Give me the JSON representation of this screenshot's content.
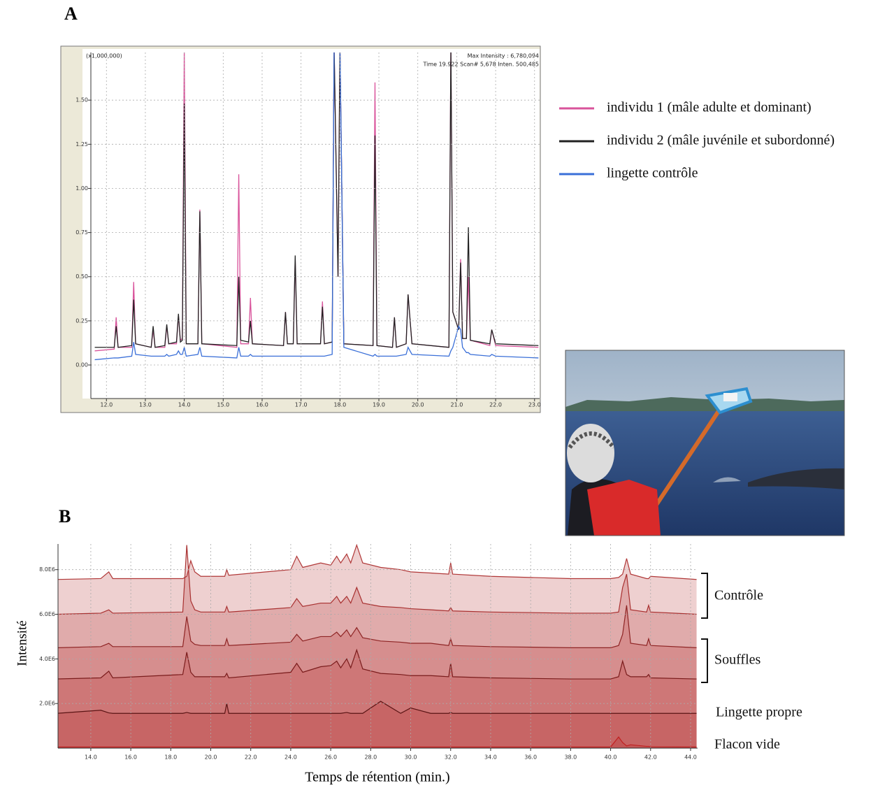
{
  "panel_labels": [
    "A",
    "B"
  ],
  "chart_data": [
    {
      "type": "line",
      "annotations": [
        "(x1,000,000)",
        "Max Intensity : 6,780,094",
        "Time 19.922 Scan# 5,678 Inten. 500,485"
      ],
      "x": [
        11.7,
        12.2,
        12.25,
        12.3,
        12.65,
        12.7,
        12.75,
        13.15,
        13.2,
        13.25,
        13.5,
        13.55,
        13.6,
        13.8,
        13.85,
        13.9,
        13.95,
        14.0,
        14.05,
        14.35,
        14.4,
        14.45,
        15.35,
        15.4,
        15.45,
        15.65,
        15.7,
        15.75,
        16.55,
        16.6,
        16.65,
        16.8,
        16.85,
        16.9,
        17.5,
        17.55,
        17.6,
        17.8,
        17.85,
        17.95,
        18.0,
        18.1,
        18.85,
        18.9,
        18.95,
        19.35,
        19.4,
        19.45,
        19.7,
        19.75,
        19.85,
        20.8,
        20.85,
        20.9,
        21.05,
        21.1,
        21.15,
        21.25,
        21.3,
        21.35,
        21.85,
        21.9,
        22.0,
        23.1
      ],
      "series": [
        {
          "name": "individu 1 (mâle adulte et dominant)",
          "color": "#d9539b",
          "values": [
            0.08,
            0.09,
            0.27,
            0.1,
            0.1,
            0.47,
            0.12,
            0.1,
            0.2,
            0.1,
            0.1,
            0.22,
            0.12,
            0.12,
            0.28,
            0.14,
            0.15,
            1.8,
            0.12,
            0.12,
            0.88,
            0.12,
            0.1,
            1.08,
            0.12,
            0.12,
            0.38,
            0.12,
            0.11,
            0.3,
            0.12,
            0.12,
            0.6,
            0.12,
            0.12,
            0.36,
            0.12,
            0.13,
            1.8,
            0.5,
            1.8,
            0.12,
            0.11,
            1.6,
            0.11,
            0.1,
            0.27,
            0.1,
            0.12,
            0.4,
            0.12,
            0.1,
            1.8,
            0.3,
            0.2,
            0.6,
            0.15,
            0.15,
            0.5,
            0.14,
            0.11,
            0.2,
            0.11,
            0.1
          ]
        },
        {
          "name": "individu 2 (mâle juvénile et subordonné)",
          "color": "#222222",
          "values": [
            0.1,
            0.1,
            0.22,
            0.1,
            0.11,
            0.37,
            0.12,
            0.1,
            0.22,
            0.1,
            0.11,
            0.23,
            0.12,
            0.13,
            0.29,
            0.13,
            0.14,
            1.48,
            0.12,
            0.12,
            0.87,
            0.12,
            0.11,
            0.5,
            0.14,
            0.13,
            0.25,
            0.12,
            0.11,
            0.3,
            0.12,
            0.12,
            0.62,
            0.12,
            0.12,
            0.33,
            0.12,
            0.13,
            1.8,
            0.5,
            1.8,
            0.12,
            0.11,
            1.3,
            0.11,
            0.1,
            0.27,
            0.1,
            0.12,
            0.4,
            0.12,
            0.1,
            1.8,
            0.3,
            0.2,
            0.58,
            0.15,
            0.15,
            0.78,
            0.14,
            0.12,
            0.2,
            0.12,
            0.11
          ]
        },
        {
          "name": "lingette contrôle",
          "color": "#3a6fd8",
          "values": [
            0.03,
            0.04,
            0.04,
            0.04,
            0.05,
            0.13,
            0.06,
            0.05,
            0.05,
            0.05,
            0.05,
            0.06,
            0.05,
            0.06,
            0.08,
            0.06,
            0.06,
            0.1,
            0.05,
            0.06,
            0.1,
            0.05,
            0.04,
            0.1,
            0.05,
            0.05,
            0.06,
            0.05,
            0.05,
            0.05,
            0.05,
            0.05,
            0.05,
            0.05,
            0.05,
            0.05,
            0.05,
            0.06,
            1.8,
            1.8,
            1.8,
            0.1,
            0.05,
            0.06,
            0.05,
            0.05,
            0.05,
            0.05,
            0.06,
            0.1,
            0.06,
            0.05,
            0.08,
            0.1,
            0.22,
            0.2,
            0.1,
            0.07,
            0.07,
            0.06,
            0.05,
            0.06,
            0.05,
            0.04
          ]
        }
      ],
      "xlim": [
        11.6,
        23.13
      ],
      "xticks": [
        {
          "value": 12,
          "label": "12.0"
        },
        {
          "value": 13,
          "label": "13.0"
        },
        {
          "value": 14,
          "label": "14.0"
        },
        {
          "value": 15,
          "label": "15.0"
        },
        {
          "value": 16,
          "label": "16.0"
        },
        {
          "value": 17,
          "label": "17.0"
        },
        {
          "value": 18,
          "label": "18.0"
        },
        {
          "value": 19,
          "label": "19.0"
        },
        {
          "value": 20,
          "label": "20.0"
        },
        {
          "value": 21,
          "label": "21.0"
        },
        {
          "value": 22,
          "label": "22.0"
        },
        {
          "value": 23,
          "label": "23.0"
        }
      ],
      "ylim": [
        -0.19,
        1.77
      ],
      "yticks": [
        {
          "value": 0,
          "label": "0.00"
        },
        {
          "value": 0.25,
          "label": "0.25"
        },
        {
          "value": 0.5,
          "label": "0.50"
        },
        {
          "value": 0.75,
          "label": "0.75"
        },
        {
          "value": 1,
          "label": "1.00"
        },
        {
          "value": 1.25,
          "label": "1.25"
        },
        {
          "value": 1.5,
          "label": "1.50"
        }
      ],
      "grid": true
    },
    {
      "type": "area",
      "xlabel": "Temps de rétention (min.)",
      "ylabel": "Intensité",
      "area_color": "#b02a2a",
      "fill_opacity": 0.22,
      "groups": [
        {
          "name": "Contrôle",
          "series": [
            0,
            1
          ]
        },
        {
          "name": "Souffles",
          "series": [
            2,
            3
          ]
        }
      ],
      "x": [
        12.3,
        14.5,
        14.9,
        15.1,
        18.6,
        18.8,
        19.0,
        19.2,
        19.5,
        20.7,
        20.8,
        20.9,
        24.0,
        24.3,
        24.6,
        25.5,
        26.0,
        26.3,
        26.5,
        26.8,
        27.0,
        27.3,
        27.6,
        28.5,
        29.5,
        30.0,
        31.0,
        31.9,
        32.0,
        32.1,
        34.0,
        38.0,
        40.0,
        40.4,
        40.6,
        40.8,
        41.0,
        41.8,
        41.9,
        42.0,
        44.3
      ],
      "series": [
        {
          "color": "#b03838",
          "values": [
            7560000.0,
            7600000.0,
            7900000.0,
            7600000.0,
            7600000.0,
            7700000.0,
            8400000.0,
            7900000.0,
            7700000.0,
            7700000.0,
            8000000.0,
            7750000.0,
            8000000.0,
            8600000.0,
            8100000.0,
            8300000.0,
            8200000.0,
            8600000.0,
            8300000.0,
            8700000.0,
            8300000.0,
            9100000.0,
            8300000.0,
            8100000.0,
            8000000.0,
            7900000.0,
            7850000.0,
            7800000.0,
            8300000.0,
            7800000.0,
            7700000.0,
            7600000.0,
            7600000.0,
            7650000.0,
            7800000.0,
            8500000.0,
            7800000.0,
            7600000.0,
            7600000.0,
            7700000.0,
            7560000.0
          ]
        },
        {
          "color": "#a83030",
          "values": [
            6000000.0,
            6050000.0,
            6200000.0,
            6050000.0,
            6100000.0,
            9100000.0,
            6600000.0,
            6200000.0,
            6100000.0,
            6100000.0,
            6350000.0,
            6100000.0,
            6300000.0,
            6700000.0,
            6350000.0,
            6500000.0,
            6500000.0,
            6800000.0,
            6500000.0,
            6800000.0,
            6500000.0,
            7200000.0,
            6500000.0,
            6350000.0,
            6300000.0,
            6250000.0,
            6200000.0,
            6150000.0,
            6300000.0,
            6150000.0,
            6100000.0,
            6050000.0,
            6050000.0,
            6100000.0,
            7200000.0,
            7800000.0,
            6200000.0,
            6100000.0,
            6400000.0,
            6100000.0,
            6000000.0
          ]
        },
        {
          "color": "#8e2424",
          "values": [
            4500000.0,
            4550000.0,
            4700000.0,
            4550000.0,
            4550000.0,
            5900000.0,
            4800000.0,
            4650000.0,
            4600000.0,
            4600000.0,
            4900000.0,
            4600000.0,
            4750000.0,
            5100000.0,
            4800000.0,
            5000000.0,
            5000000.0,
            5200000.0,
            5000000.0,
            5300000.0,
            5000000.0,
            5400000.0,
            4950000.0,
            4800000.0,
            4750000.0,
            4700000.0,
            4700000.0,
            4600000.0,
            4900000.0,
            4600000.0,
            4550000.0,
            4500000.0,
            4500000.0,
            4600000.0,
            5100000.0,
            6400000.0,
            4700000.0,
            4600000.0,
            4900000.0,
            4600000.0,
            4500000.0
          ]
        },
        {
          "color": "#7a1c1c",
          "values": [
            3100000.0,
            3150000.0,
            3450000.0,
            3150000.0,
            3300000.0,
            4300000.0,
            3400000.0,
            3200000.0,
            3200000.0,
            3200000.0,
            3350000.0,
            3150000.0,
            3400000.0,
            3800000.0,
            3400000.0,
            3650000.0,
            3700000.0,
            3900000.0,
            3600000.0,
            4000000.0,
            3600000.0,
            4400000.0,
            3550000.0,
            3350000.0,
            3300000.0,
            3250000.0,
            3250000.0,
            3200000.0,
            3800000.0,
            3200000.0,
            3150000.0,
            3100000.0,
            3100000.0,
            3200000.0,
            3900000.0,
            3300000.0,
            3200000.0,
            3200000.0,
            3300000.0,
            3150000.0,
            3100000.0
          ]
        },
        {
          "name": "Lingette propre",
          "color": "#5a1414",
          "values": [
            1560000.0,
            1700000.0,
            1580000.0,
            1560000.0,
            1560000.0,
            1600000.0,
            1560000.0,
            1560000.0,
            1560000.0,
            1560000.0,
            2000000.0,
            1560000.0,
            1560000.0,
            1560000.0,
            1560000.0,
            1560000.0,
            1560000.0,
            1560000.0,
            1560000.0,
            1600000.0,
            1560000.0,
            1560000.0,
            1560000.0,
            2100000.0,
            1560000.0,
            1800000.0,
            1560000.0,
            1560000.0,
            1600000.0,
            1560000.0,
            1560000.0,
            1560000.0,
            1560000.0,
            1560000.0,
            1560000.0,
            1560000.0,
            1560000.0,
            1560000.0,
            1560000.0,
            1560000.0,
            1560000.0
          ]
        },
        {
          "name": "Flacon vide",
          "color": "#c02020",
          "values": [
            50000.0,
            50000.0,
            50000.0,
            50000.0,
            50000.0,
            50000.0,
            50000.0,
            50000.0,
            50000.0,
            50000.0,
            50000.0,
            50000.0,
            50000.0,
            50000.0,
            50000.0,
            50000.0,
            50000.0,
            50000.0,
            50000.0,
            50000.0,
            50000.0,
            50000.0,
            50000.0,
            50000.0,
            50000.0,
            50000.0,
            50000.0,
            50000.0,
            50000.0,
            50000.0,
            50000.0,
            50000.0,
            50000.0,
            500000.0,
            250000.0,
            100000.0,
            150000.0,
            80000.0,
            80000.0,
            60000.0,
            50000.0
          ]
        }
      ],
      "xlim": [
        12.36,
        44.35
      ],
      "xticks": [
        {
          "value": 14,
          "label": "14.0"
        },
        {
          "value": 16,
          "label": "16.0"
        },
        {
          "value": 18,
          "label": "18.0"
        },
        {
          "value": 20,
          "label": "20.0"
        },
        {
          "value": 22,
          "label": "22.0"
        },
        {
          "value": 24,
          "label": "24.0"
        },
        {
          "value": 26,
          "label": "26.0"
        },
        {
          "value": 28,
          "label": "28.0"
        },
        {
          "value": 30,
          "label": "30.0"
        },
        {
          "value": 32,
          "label": "32.0"
        },
        {
          "value": 34,
          "label": "34.0"
        },
        {
          "value": 36,
          "label": "36.0"
        },
        {
          "value": 38,
          "label": "38.0"
        },
        {
          "value": 40,
          "label": "40.0"
        },
        {
          "value": 42,
          "label": "42.0"
        },
        {
          "value": 44,
          "label": "44.0"
        }
      ],
      "ylim": [
        0,
        9150000.0
      ],
      "yticks": [
        {
          "value": 2000000.0,
          "label": "2.0E6"
        },
        {
          "value": 4000000.0,
          "label": "4.0E6"
        },
        {
          "value": 6000000.0,
          "label": "6.0E6"
        },
        {
          "value": 8000000.0,
          "label": "8.0E6"
        }
      ],
      "grid": true
    }
  ]
}
